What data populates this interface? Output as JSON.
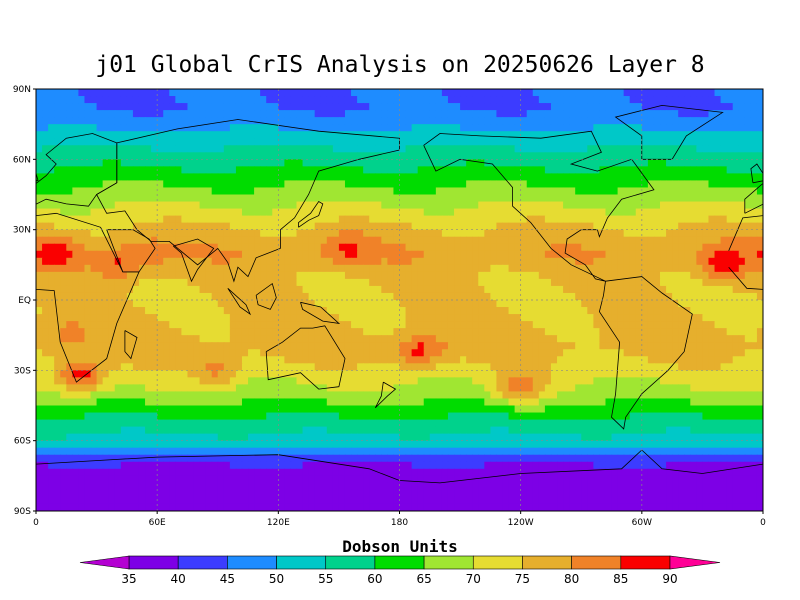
{
  "figure": {
    "title": "j01 Global CrIS Analysis on 20250626 Layer 8"
  },
  "axes": {
    "lat_labels": [
      "90N",
      "60N",
      "30N",
      "EQ",
      "30S",
      "60S",
      "90S"
    ],
    "lat_values": [
      90,
      60,
      30,
      0,
      -30,
      -60,
      -90
    ],
    "lon_labels": [
      "0",
      "60E",
      "120E",
      "180",
      "120W",
      "60W",
      "0"
    ],
    "lon_values": [
      0,
      60,
      120,
      180,
      240,
      300,
      360
    ]
  },
  "colorbar": {
    "title": "Dobson Units",
    "labels": [
      "35",
      "40",
      "45",
      "50",
      "55",
      "60",
      "65",
      "70",
      "75",
      "80",
      "85",
      "90"
    ],
    "colors": [
      "#b400d2",
      "#7d00e6",
      "#3c3cff",
      "#1e8cff",
      "#00c8c8",
      "#00d28c",
      "#00dc00",
      "#a0e632",
      "#e6dc32",
      "#e6af2d",
      "#f08228",
      "#fa0000",
      "#ff0096"
    ],
    "low_color": "#b400d2",
    "high_color": "#ff0096"
  },
  "chart_data": {
    "type": "heatmap",
    "title": "j01 Global CrIS Analysis on 20250626 Layer 8",
    "units": "Dobson Units",
    "xlabel": "",
    "ylabel": "",
    "xlim": [
      0,
      360
    ],
    "ylim": [
      -90,
      90
    ],
    "levels": [
      35,
      40,
      45,
      50,
      55,
      60,
      65,
      70,
      75,
      80,
      85,
      90
    ],
    "grid": true,
    "zonal_profile": {
      "lat": [
        90,
        80,
        70,
        60,
        50,
        40,
        30,
        20,
        10,
        0,
        -10,
        -20,
        -30,
        -40,
        -50,
        -60,
        -70,
        -80,
        -90
      ],
      "value": [
        45,
        45,
        52,
        58,
        64,
        70,
        76,
        79,
        76,
        75,
        76,
        77,
        73,
        68,
        60,
        53,
        40,
        36,
        36
      ]
    },
    "hotspots": [
      {
        "lon": 10,
        "lat": 20,
        "value": 88
      },
      {
        "lon": 22,
        "lat": -33,
        "value": 88
      },
      {
        "lon": 40,
        "lat": 15,
        "value": 86
      },
      {
        "lon": 55,
        "lat": 20,
        "value": 84
      },
      {
        "lon": 153,
        "lat": 22,
        "value": 86
      },
      {
        "lon": 190,
        "lat": -22,
        "value": 88
      },
      {
        "lon": 240,
        "lat": -38,
        "value": 82
      },
      {
        "lon": 340,
        "lat": 15,
        "value": 88
      },
      {
        "lon": 15,
        "lat": -15,
        "value": 82
      },
      {
        "lon": 90,
        "lat": -30,
        "value": 82
      }
    ]
  }
}
